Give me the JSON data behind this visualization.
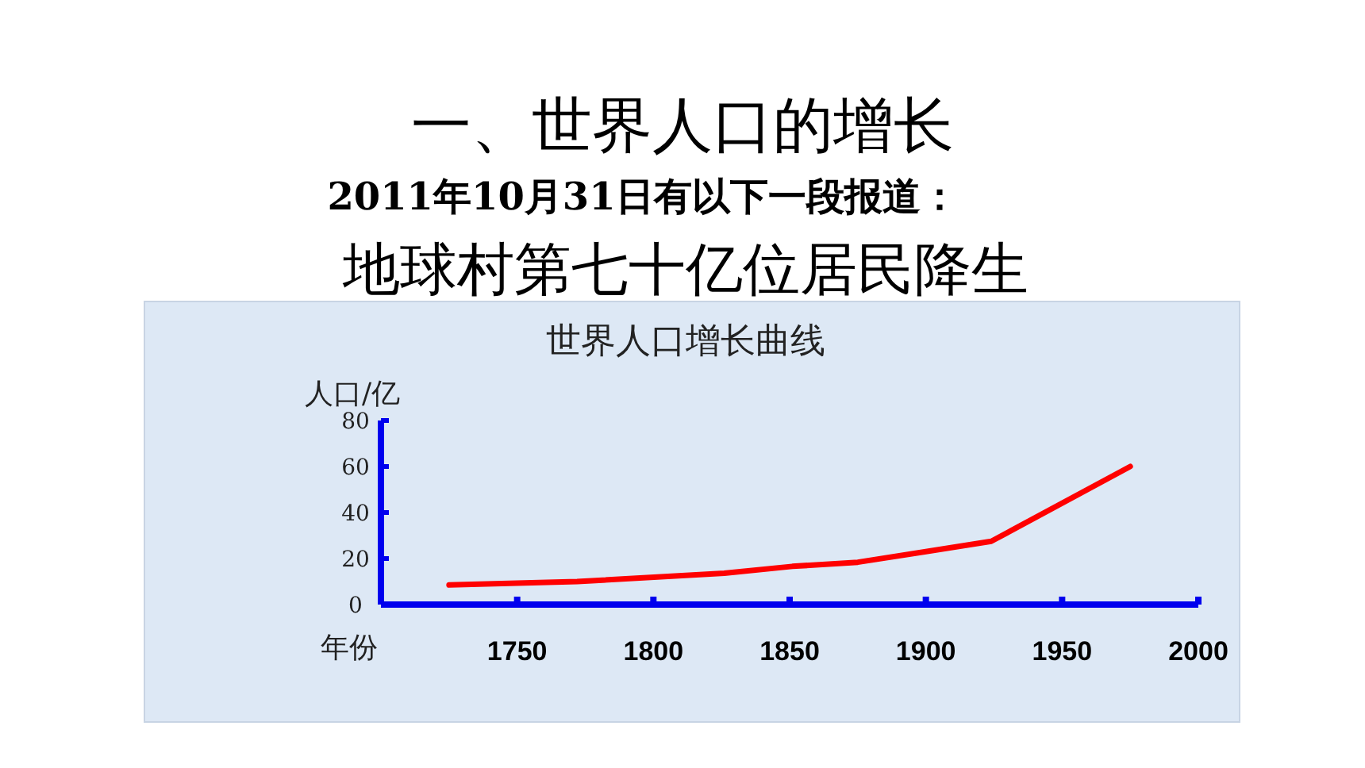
{
  "chart_data": {
    "type": "line",
    "title": "世界人口增长曲线",
    "ylabel": "人口/亿",
    "xlabel": "年份",
    "annotations": [
      "一、世界人口的增长",
      "2011年10月31日有以下一段报道：",
      "地球村第七十亿位居民降生"
    ],
    "x": [
      1725,
      1772,
      1826,
      1851,
      1875,
      1900,
      1924,
      1975
    ],
    "series": [
      {
        "color": "#ff0000",
        "values": [
          8.5,
          10,
          13.6,
          16.6,
          18.4,
          23,
          27.5,
          60
        ]
      }
    ],
    "xlim": [
      1700,
      2000
    ],
    "xticks": [
      1750,
      1800,
      1850,
      1900,
      1950,
      2000
    ],
    "ylim": [
      0,
      80
    ],
    "yticks": [
      0,
      20,
      40,
      60,
      80
    ],
    "grid": false,
    "marker": "none",
    "line_style": "solid"
  }
}
